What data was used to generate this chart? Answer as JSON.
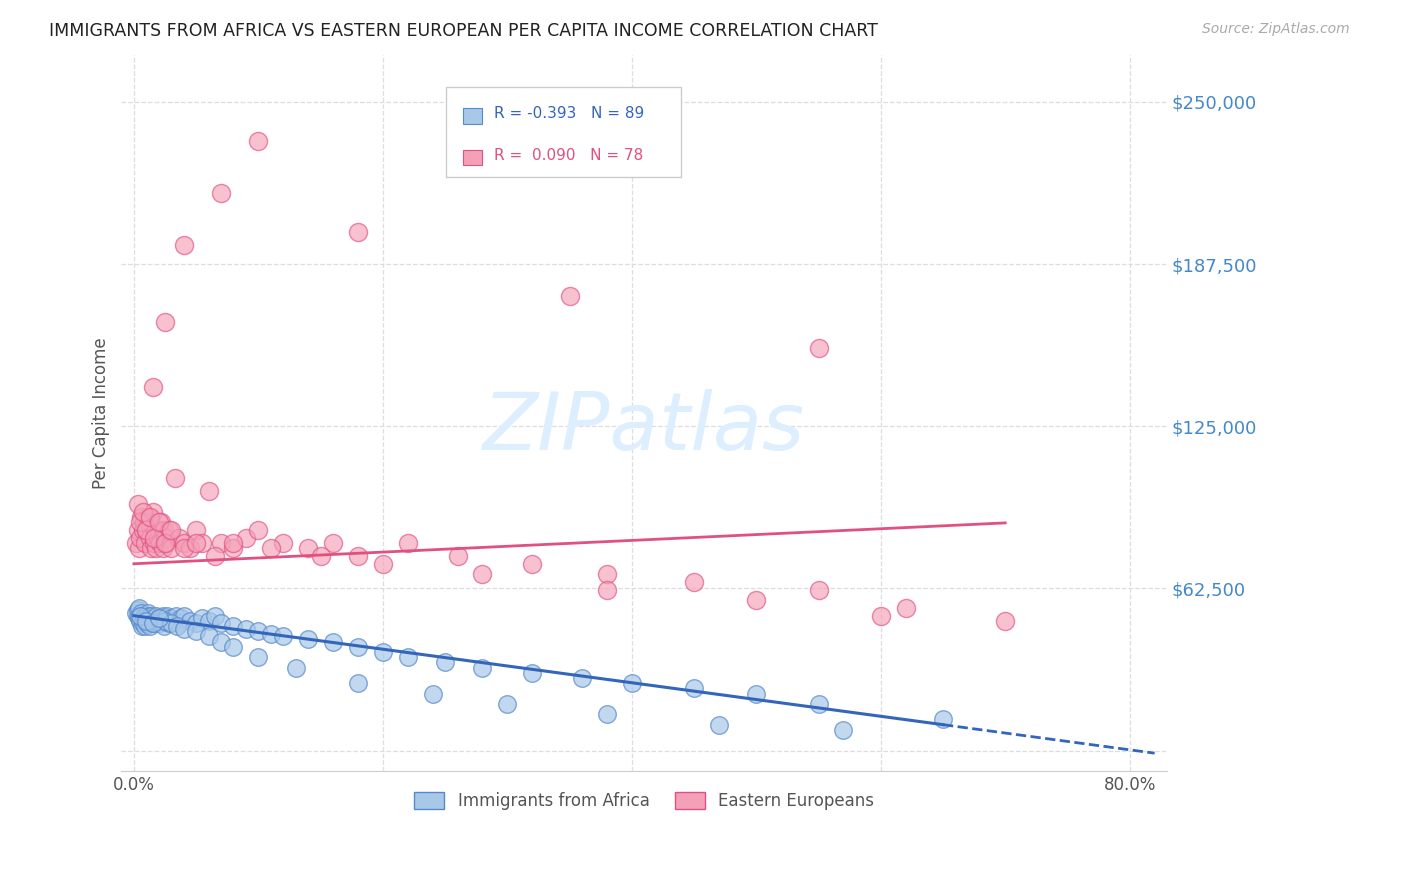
{
  "title": "IMMIGRANTS FROM AFRICA VS EASTERN EUROPEAN PER CAPITA INCOME CORRELATION CHART",
  "source": "Source: ZipAtlas.com",
  "ylabel": "Per Capita Income",
  "yticks": [
    0,
    62500,
    125000,
    187500,
    250000
  ],
  "ytick_labels": [
    "",
    "$62,500",
    "$125,000",
    "$187,500",
    "$250,000"
  ],
  "ylim": [
    -8000,
    268000
  ],
  "xlim": [
    -1.0,
    83.0
  ],
  "xtick_left_label": "0.0%",
  "xtick_right_label": "80.0%",
  "blue_R": "-0.393",
  "blue_N": "89",
  "pink_R": "0.090",
  "pink_N": "78",
  "blue_label": "Immigrants from Africa",
  "pink_label": "Eastern Europeans",
  "blue_color": "#a8c8e8",
  "pink_color": "#f4a0b8",
  "blue_edge_color": "#5588cc",
  "pink_edge_color": "#e05080",
  "blue_line_color": "#3366bb",
  "pink_line_color": "#e05080",
  "watermark_color": "#ddeeff",
  "background_color": "#ffffff",
  "grid_color": "#dddddd",
  "title_color": "#222222",
  "source_color": "#aaaaaa",
  "axis_label_color": "#555555",
  "ytick_color": "#4488cc",
  "xtick_color": "#555555",
  "blue_scatter_x": [
    0.2,
    0.3,
    0.35,
    0.4,
    0.45,
    0.5,
    0.55,
    0.6,
    0.65,
    0.7,
    0.75,
    0.8,
    0.85,
    0.9,
    0.95,
    1.0,
    1.05,
    1.1,
    1.15,
    1.2,
    1.25,
    1.3,
    1.35,
    1.4,
    1.5,
    1.6,
    1.7,
    1.8,
    1.9,
    2.0,
    2.1,
    2.2,
    2.3,
    2.4,
    2.5,
    2.6,
    2.7,
    2.8,
    3.0,
    3.2,
    3.4,
    3.6,
    3.8,
    4.0,
    4.5,
    5.0,
    5.5,
    6.0,
    6.5,
    7.0,
    8.0,
    9.0,
    10.0,
    11.0,
    12.0,
    14.0,
    16.0,
    18.0,
    20.0,
    22.0,
    25.0,
    28.0,
    32.0,
    36.0,
    40.0,
    45.0,
    50.0,
    55.0,
    65.0,
    2.5,
    3.0,
    3.5,
    4.0,
    5.0,
    6.0,
    7.0,
    8.0,
    10.0,
    13.0,
    18.0,
    24.0,
    30.0,
    38.0,
    47.0,
    57.0,
    0.5,
    1.0,
    1.5,
    2.0
  ],
  "blue_scatter_y": [
    53000,
    52000,
    54000,
    55000,
    51000,
    50000,
    53000,
    52000,
    48000,
    50000,
    49000,
    51000,
    52000,
    48000,
    50000,
    52000,
    49000,
    53000,
    51000,
    50000,
    52000,
    48000,
    51000,
    52000,
    49000,
    50000,
    51000,
    52000,
    50000,
    51000,
    49000,
    50000,
    52000,
    48000,
    51000,
    50000,
    52000,
    49000,
    51000,
    50000,
    52000,
    49000,
    51000,
    52000,
    50000,
    49000,
    51000,
    50000,
    52000,
    49000,
    48000,
    47000,
    46000,
    45000,
    44000,
    43000,
    42000,
    40000,
    38000,
    36000,
    34000,
    32000,
    30000,
    28000,
    26000,
    24000,
    22000,
    18000,
    12000,
    50000,
    49000,
    48000,
    47000,
    46000,
    44000,
    42000,
    40000,
    36000,
    32000,
    26000,
    22000,
    18000,
    14000,
    10000,
    8000,
    52000,
    50000,
    49000,
    51000
  ],
  "pink_scatter_x": [
    0.2,
    0.3,
    0.4,
    0.5,
    0.6,
    0.7,
    0.8,
    0.9,
    1.0,
    1.1,
    1.2,
    1.3,
    1.4,
    1.5,
    1.6,
    1.7,
    1.8,
    1.9,
    2.0,
    2.1,
    2.2,
    2.3,
    2.4,
    2.5,
    2.6,
    2.8,
    3.0,
    3.3,
    3.6,
    4.0,
    4.5,
    5.0,
    5.5,
    6.0,
    7.0,
    8.0,
    9.0,
    10.0,
    12.0,
    14.0,
    16.0,
    18.0,
    22.0,
    26.0,
    32.0,
    38.0,
    45.0,
    55.0,
    62.0,
    70.0,
    0.3,
    0.5,
    0.7,
    1.0,
    1.3,
    1.6,
    2.0,
    2.5,
    3.0,
    4.0,
    5.0,
    6.5,
    8.0,
    11.0,
    15.0,
    20.0,
    28.0,
    38.0,
    50.0,
    60.0,
    1.5,
    2.5,
    4.0,
    7.0,
    10.0,
    18.0,
    35.0,
    55.0
  ],
  "pink_scatter_y": [
    80000,
    85000,
    78000,
    82000,
    90000,
    85000,
    88000,
    80000,
    85000,
    90000,
    88000,
    82000,
    78000,
    92000,
    80000,
    85000,
    78000,
    82000,
    85000,
    80000,
    88000,
    78000,
    85000,
    82000,
    80000,
    85000,
    78000,
    105000,
    82000,
    80000,
    78000,
    85000,
    80000,
    100000,
    80000,
    78000,
    82000,
    85000,
    80000,
    78000,
    80000,
    75000,
    80000,
    75000,
    72000,
    68000,
    65000,
    62000,
    55000,
    50000,
    95000,
    88000,
    92000,
    85000,
    90000,
    82000,
    88000,
    80000,
    85000,
    78000,
    80000,
    75000,
    80000,
    78000,
    75000,
    72000,
    68000,
    62000,
    58000,
    52000,
    140000,
    165000,
    195000,
    215000,
    235000,
    200000,
    175000,
    155000
  ],
  "blue_trend_x_start": 0.0,
  "blue_trend_x_solid_end": 65.0,
  "blue_trend_x_end": 82.0,
  "pink_trend_x_start": 0.0,
  "pink_trend_x_solid_end": 70.0,
  "pink_trend_x_end": 82.0
}
